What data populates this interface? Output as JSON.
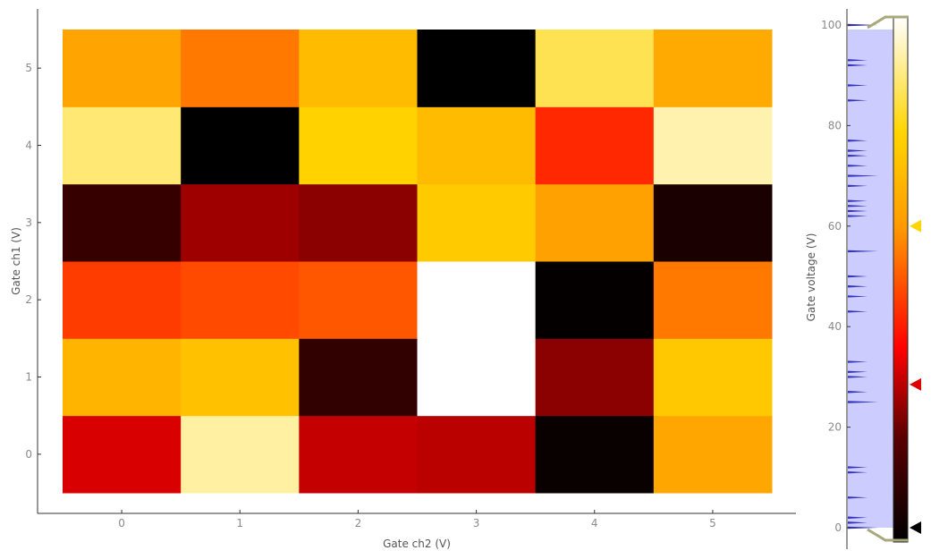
{
  "chart_data": {
    "type": "heatmap",
    "title": "",
    "xlabel": "Gate ch2 (V)",
    "ylabel": "Gate ch1 (V)",
    "x": [
      0,
      1,
      2,
      3,
      4,
      5
    ],
    "y": [
      0,
      1,
      2,
      3,
      4,
      5
    ],
    "xlim": [
      -0.5,
      5.5
    ],
    "ylim": [
      -0.5,
      5.5
    ],
    "z": [
      [
        33,
        92,
        31,
        30,
        2,
        64
      ],
      [
        68,
        72,
        11,
        100,
        25,
        74
      ],
      [
        46,
        48,
        50,
        100,
        1,
        55
      ],
      [
        12,
        27,
        25,
        75,
        62,
        6
      ],
      [
        88,
        0,
        77,
        70,
        43,
        93
      ],
      [
        63,
        55,
        70,
        0,
        85,
        65
      ]
    ],
    "colormap": "hot",
    "grid": false,
    "colorbar": {
      "label": "Gate voltage (V)",
      "range": [
        0,
        100
      ],
      "ticks": [
        0,
        20,
        40,
        60,
        80,
        100
      ],
      "level_markers": [
        {
          "value": 0,
          "color": "#000000"
        },
        {
          "value": 28.5,
          "color": "#dd0000"
        },
        {
          "value": 60,
          "color": "#ffd500"
        }
      ],
      "histogram_color": "#ccccff"
    }
  }
}
